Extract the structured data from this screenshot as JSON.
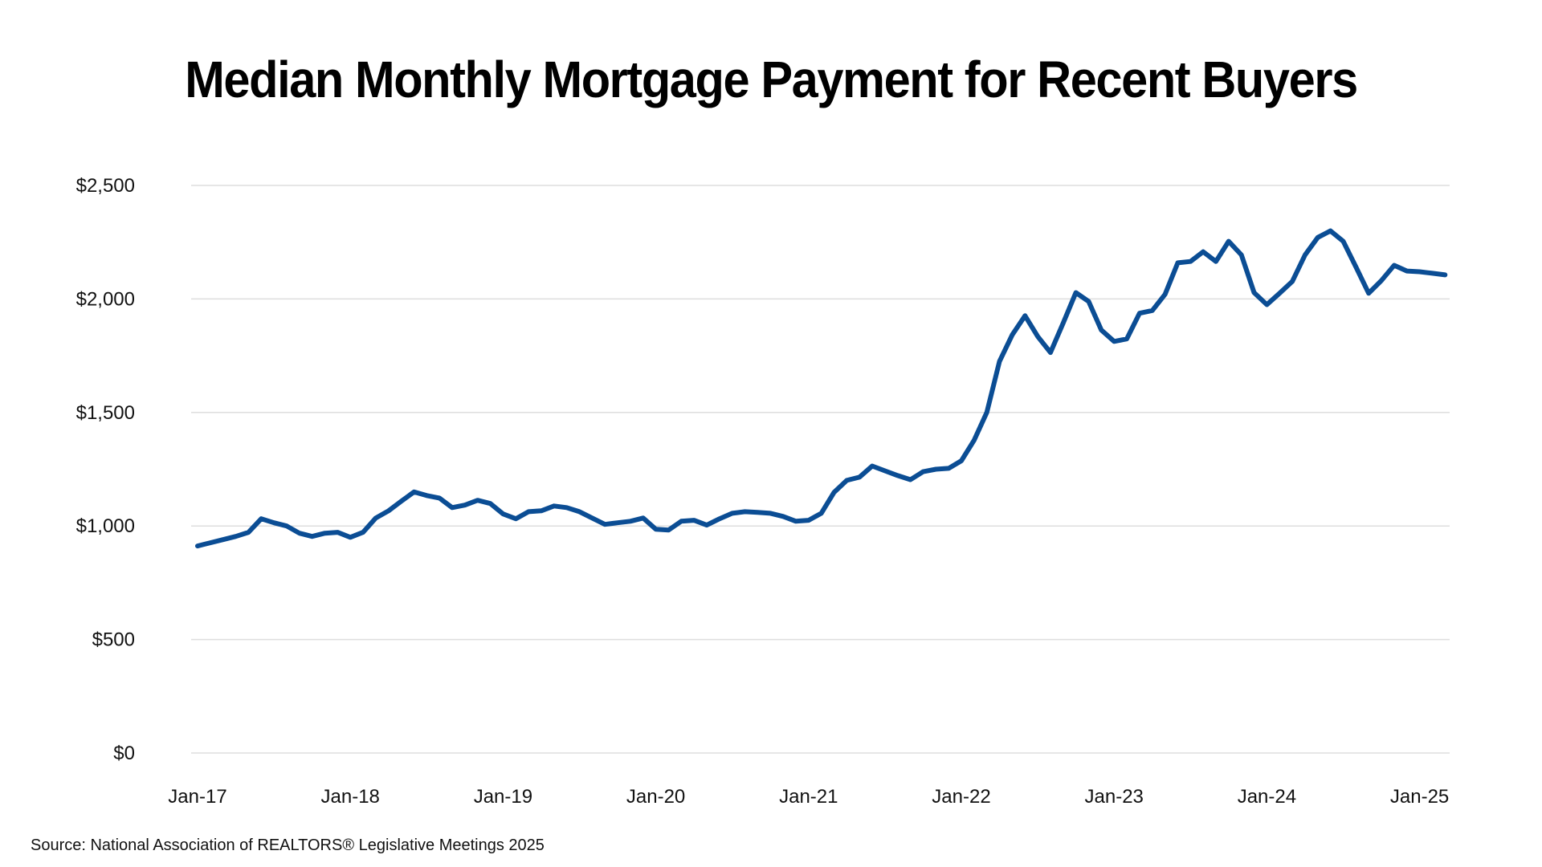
{
  "title": "Median Monthly Mortgage Payment for Recent Buyers",
  "source": "Source: National Association of REALTORS® Legislative Meetings 2025",
  "colors": {
    "line": "#0b4d94",
    "grid": "#dedede",
    "text": "#111111",
    "background": "#ffffff"
  },
  "chart_data": {
    "type": "line",
    "title": "Median Monthly Mortgage Payment for Recent Buyers",
    "xlabel": "",
    "ylabel": "",
    "ylim": [
      0,
      2500
    ],
    "yticks": [
      0,
      500,
      1000,
      1500,
      2000,
      2500
    ],
    "ytick_labels": [
      "$0",
      "$500",
      "$1,000",
      "$1,500",
      "$2,000",
      "$2,500"
    ],
    "xtick_labels": [
      "Jan-17",
      "Jan-18",
      "Jan-19",
      "Jan-20",
      "Jan-21",
      "Jan-22",
      "Jan-23",
      "Jan-24",
      "Jan-25"
    ],
    "xtick_index": [
      0,
      12,
      24,
      36,
      48,
      60,
      72,
      84,
      96
    ],
    "grid": true,
    "legend": null,
    "x_start": "Jan-2017",
    "x_frequency": "monthly",
    "series": [
      {
        "name": "Median Monthly Mortgage Payment",
        "values": [
          912,
          926,
          940,
          954,
          972,
          1032,
          1014,
          1000,
          968,
          954,
          968,
          972,
          950,
          972,
          1035,
          1067,
          1109,
          1150,
          1134,
          1123,
          1081,
          1092,
          1113,
          1099,
          1053,
          1032,
          1063,
          1067,
          1088,
          1081,
          1063,
          1035,
          1007,
          1014,
          1021,
          1035,
          986,
          982,
          1021,
          1025,
          1004,
          1032,
          1056,
          1063,
          1060,
          1056,
          1042,
          1021,
          1025,
          1056,
          1148,
          1201,
          1215,
          1264,
          1243,
          1222,
          1204,
          1239,
          1250,
          1254,
          1287,
          1377,
          1500,
          1725,
          1842,
          1926,
          1835,
          1764,
          1894,
          2028,
          1989,
          1863,
          1813,
          1824,
          1937,
          1949,
          2020,
          2159,
          2165,
          2208,
          2165,
          2254,
          2194,
          2028,
          1975,
          2025,
          2077,
          2194,
          2271,
          2300,
          2254,
          2141,
          2025,
          2081,
          2148,
          2123,
          2120,
          2113,
          2106
        ]
      }
    ]
  }
}
